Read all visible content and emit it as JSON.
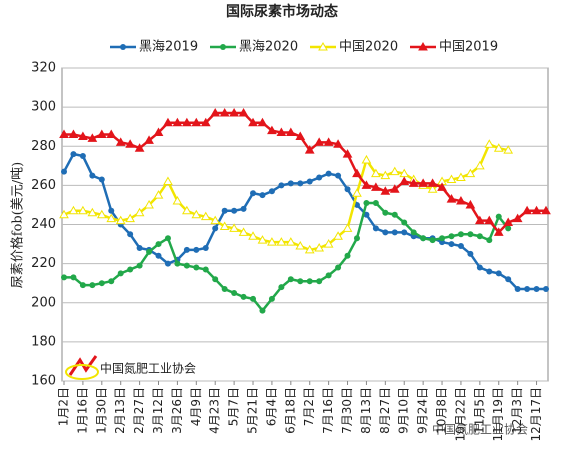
{
  "chart_data": {
    "type": "line",
    "title": "国际尿素市场动态",
    "y_label": "尿素价格fob(美元/吨)",
    "annotations": [
      "中国氮肥工业协会",
      "中国氮肥工业协会"
    ],
    "categories": [
      "1月2日",
      null,
      "1月16日",
      null,
      "1月30日",
      null,
      "2月13日",
      null,
      "2月27日",
      null,
      "3月12日",
      null,
      "3月26日",
      null,
      "4月9日",
      null,
      "4月23日",
      null,
      "5月7日",
      null,
      "5月21日",
      null,
      "6月4日",
      null,
      "6月18日",
      null,
      "7月2日",
      null,
      "7月16日",
      null,
      "7月30日",
      null,
      "8月13日",
      null,
      "8月27日",
      null,
      "9月10日",
      null,
      "9月24日",
      null,
      "10月8日",
      null,
      "10月22日",
      null,
      "11月5日",
      null,
      "11月19日",
      null,
      "12月3日",
      null,
      "12月17日",
      null
    ],
    "series": [
      {
        "name": "黑海2019",
        "color": "#1f6db5",
        "marker": "circle",
        "values": [
          267,
          276,
          275,
          265,
          263,
          247,
          240,
          235,
          228,
          227,
          224,
          220,
          222,
          227,
          227,
          228,
          238,
          247,
          247,
          248,
          256,
          255,
          257,
          260,
          261,
          261,
          262,
          264,
          266,
          265,
          258,
          250,
          245,
          238,
          236,
          236,
          236,
          234,
          233,
          233,
          231,
          230,
          229,
          225,
          218,
          216,
          215,
          212,
          207,
          207,
          207,
          207
        ]
      },
      {
        "name": "黑海2020",
        "color": "#22a84a",
        "marker": "circle",
        "values": [
          213,
          213,
          209,
          209,
          210,
          211,
          215,
          217,
          219,
          226,
          230,
          233,
          220,
          219,
          218,
          217,
          212,
          207,
          205,
          203,
          202,
          196,
          202,
          208,
          212,
          211,
          211,
          211,
          214,
          218,
          224,
          233,
          251,
          251,
          246,
          245,
          241,
          236,
          233,
          232,
          233,
          234,
          235,
          235,
          234,
          232,
          244,
          238,
          null,
          null,
          null,
          null
        ]
      },
      {
        "name": "中国2020",
        "color": "#f2e500",
        "marker": "triangle-open",
        "values": [
          245,
          247,
          247,
          246,
          245,
          243,
          242,
          243,
          246,
          250,
          255,
          262,
          252,
          247,
          245,
          244,
          242,
          239,
          238,
          236,
          234,
          232,
          231,
          231,
          231,
          229,
          227,
          228,
          230,
          234,
          238,
          256,
          273,
          266,
          265,
          267,
          266,
          263,
          260,
          258,
          262,
          263,
          264,
          266,
          270,
          281,
          279,
          278,
          null,
          null,
          null,
          null
        ]
      },
      {
        "name": "中国2019",
        "color": "#e3151b",
        "marker": "triangle",
        "values": [
          286,
          286,
          285,
          284,
          286,
          286,
          282,
          281,
          279,
          283,
          287,
          292,
          292,
          292,
          292,
          292,
          297,
          297,
          297,
          297,
          292,
          292,
          288,
          287,
          287,
          285,
          278,
          282,
          282,
          281,
          276,
          266,
          260,
          259,
          257,
          258,
          262,
          261,
          261,
          261,
          259,
          253,
          252,
          250,
          242,
          242,
          236,
          241,
          243,
          247,
          247,
          247
        ]
      }
    ],
    "ylim": [
      160,
      320
    ],
    "yticks": [
      160,
      180,
      200,
      220,
      240,
      260,
      280,
      300,
      320
    ],
    "grid": true,
    "legend": "top"
  }
}
